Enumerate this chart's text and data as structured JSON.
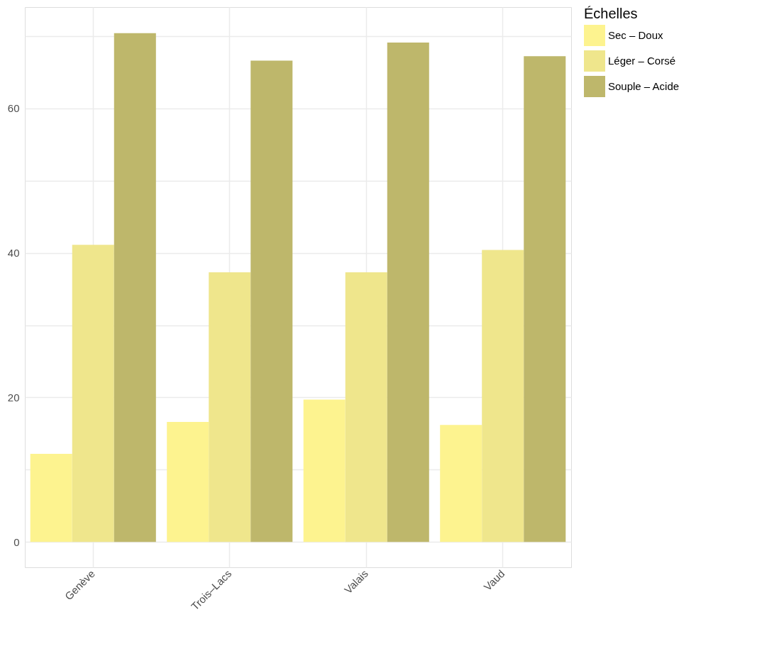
{
  "chart_data": {
    "type": "bar",
    "categories": [
      "Genève",
      "Trois–Lacs",
      "Valais",
      "Vaud"
    ],
    "legend_title": "Échelles",
    "legend": "right",
    "grid": true,
    "ylim": [
      -3.5,
      74
    ],
    "yticks": [
      0,
      {
        "value": 10,
        "label": null
      },
      20,
      {
        "value": 30,
        "label": null
      },
      40,
      {
        "value": 50,
        "label": null
      },
      60,
      {
        "value": 70,
        "label": null
      }
    ],
    "series": [
      {
        "name": "Sec – Doux",
        "color": "#fdf38f",
        "values": [
          12.2,
          16.6,
          19.7,
          16.2
        ]
      },
      {
        "name": "Léger – Corsé",
        "color": "#efe68c",
        "values": [
          41.1,
          37.3,
          37.3,
          40.4
        ]
      },
      {
        "name": "Souple – Acide",
        "color": "#beb76b",
        "values": [
          70.4,
          66.6,
          69.1,
          67.2
        ]
      }
    ]
  }
}
